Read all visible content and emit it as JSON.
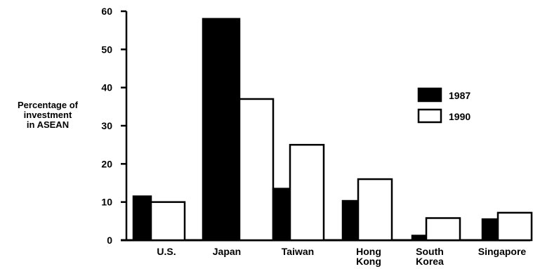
{
  "chart_data": {
    "type": "bar",
    "title": "",
    "xlabel": "",
    "ylabel": [
      "Percentage of",
      "investment",
      "in ASEAN"
    ],
    "ylim": [
      0,
      60
    ],
    "yticks": [
      0,
      10,
      20,
      30,
      40,
      50,
      60
    ],
    "grid": false,
    "legend_position": "right",
    "categories": [
      [
        "U.S."
      ],
      [
        "Japan"
      ],
      [
        "Taiwan"
      ],
      [
        "Hong",
        "Kong"
      ],
      [
        "South",
        "Korea"
      ],
      [
        "Singapore"
      ]
    ],
    "series": [
      {
        "name": "1987",
        "color": "#000000",
        "values": [
          11.5,
          58,
          13.5,
          10.3,
          1.2,
          5.5
        ]
      },
      {
        "name": "1990",
        "color": "#ffffff",
        "values": [
          10,
          37,
          25,
          16,
          5.8,
          7.2
        ]
      }
    ]
  }
}
